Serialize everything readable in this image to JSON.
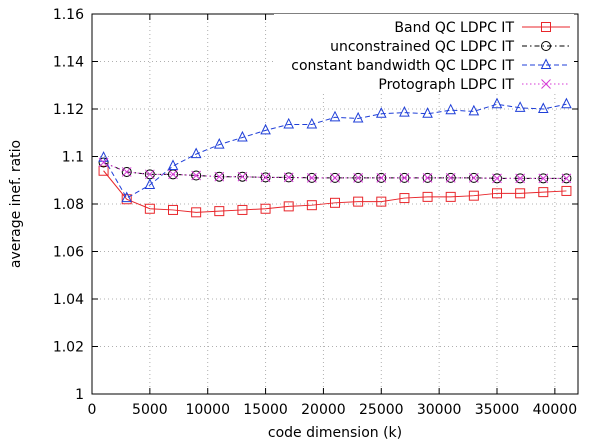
{
  "chart_data": {
    "type": "line",
    "title": "",
    "xlabel": "code dimension (k)",
    "ylabel": "average inef. ratio",
    "xlim": [
      0,
      42000
    ],
    "ylim": [
      1.0,
      1.16
    ],
    "xticks": [
      0,
      5000,
      10000,
      15000,
      20000,
      25000,
      30000,
      35000,
      40000
    ],
    "yticks": [
      1,
      1.02,
      1.04,
      1.06,
      1.08,
      1.1,
      1.12,
      1.14,
      1.16
    ],
    "xtick_labels": [
      "0",
      "5000",
      "10000",
      "15000",
      "20000",
      "25000",
      "30000",
      "35000",
      "40000"
    ],
    "ytick_labels": [
      "1",
      "1.02",
      "1.04",
      "1.06",
      "1.08",
      "1.1",
      "1.12",
      "1.14",
      "1.16"
    ],
    "grid": true,
    "legend_position": "top-right",
    "series": [
      {
        "name": "Band QC LDPC IT",
        "color": "#e8262b",
        "dash": "solid",
        "marker": "square",
        "points": [
          [
            1000,
            1.094
          ],
          [
            3000,
            1.082
          ],
          [
            5000,
            1.078
          ],
          [
            7000,
            1.0775
          ],
          [
            9000,
            1.0765
          ],
          [
            11000,
            1.077
          ],
          [
            13000,
            1.0775
          ],
          [
            15000,
            1.078
          ],
          [
            17000,
            1.079
          ],
          [
            19000,
            1.0795
          ],
          [
            21000,
            1.0805
          ],
          [
            23000,
            1.081
          ],
          [
            25000,
            1.081
          ],
          [
            27000,
            1.0825
          ],
          [
            29000,
            1.083
          ],
          [
            31000,
            1.083
          ],
          [
            33000,
            1.0835
          ],
          [
            35000,
            1.0845
          ],
          [
            37000,
            1.0845
          ],
          [
            39000,
            1.085
          ],
          [
            41000,
            1.0855
          ]
        ]
      },
      {
        "name": "unconstrained QC LDPC IT",
        "color": "#000000",
        "dash": "dashdot",
        "marker": "circle",
        "points": [
          [
            1000,
            1.0975
          ],
          [
            3000,
            1.0935
          ],
          [
            5000,
            1.0925
          ],
          [
            7000,
            1.0925
          ],
          [
            9000,
            1.092
          ],
          [
            11000,
            1.0915
          ],
          [
            13000,
            1.0915
          ],
          [
            15000,
            1.0912
          ],
          [
            17000,
            1.0912
          ],
          [
            19000,
            1.091
          ],
          [
            21000,
            1.091
          ],
          [
            23000,
            1.091
          ],
          [
            25000,
            1.091
          ],
          [
            27000,
            1.091
          ],
          [
            29000,
            1.091
          ],
          [
            31000,
            1.091
          ],
          [
            33000,
            1.091
          ],
          [
            35000,
            1.0908
          ],
          [
            37000,
            1.0908
          ],
          [
            39000,
            1.0908
          ],
          [
            41000,
            1.0908
          ]
        ]
      },
      {
        "name": "constant bandwidth QC LDPC IT",
        "color": "#1f3fd8",
        "dash": "dashed",
        "marker": "triangle",
        "points": [
          [
            1000,
            1.0995
          ],
          [
            3000,
            1.0825
          ],
          [
            5000,
            1.088
          ],
          [
            7000,
            1.096
          ],
          [
            9000,
            1.101
          ],
          [
            11000,
            1.105
          ],
          [
            13000,
            1.108
          ],
          [
            15000,
            1.111
          ],
          [
            17000,
            1.1135
          ],
          [
            19000,
            1.1135
          ],
          [
            21000,
            1.1165
          ],
          [
            23000,
            1.116
          ],
          [
            25000,
            1.118
          ],
          [
            27000,
            1.1185
          ],
          [
            29000,
            1.118
          ],
          [
            31000,
            1.1195
          ],
          [
            33000,
            1.119
          ],
          [
            35000,
            1.122
          ],
          [
            37000,
            1.1205
          ],
          [
            39000,
            1.12
          ],
          [
            41000,
            1.122
          ]
        ]
      },
      {
        "name": "Protograph LDPC IT",
        "color": "#d63ad6",
        "dash": "dotted",
        "marker": "cross",
        "points": [
          [
            1000,
            1.0975
          ],
          [
            3000,
            1.0935
          ],
          [
            5000,
            1.0925
          ],
          [
            7000,
            1.0925
          ],
          [
            9000,
            1.092
          ],
          [
            11000,
            1.0915
          ],
          [
            13000,
            1.0915
          ],
          [
            15000,
            1.0912
          ],
          [
            17000,
            1.0912
          ],
          [
            19000,
            1.091
          ],
          [
            21000,
            1.091
          ],
          [
            23000,
            1.091
          ],
          [
            25000,
            1.091
          ],
          [
            27000,
            1.091
          ],
          [
            29000,
            1.091
          ],
          [
            31000,
            1.091
          ],
          [
            33000,
            1.091
          ],
          [
            35000,
            1.0908
          ],
          [
            37000,
            1.0908
          ],
          [
            39000,
            1.0908
          ],
          [
            41000,
            1.0908
          ]
        ]
      }
    ]
  }
}
